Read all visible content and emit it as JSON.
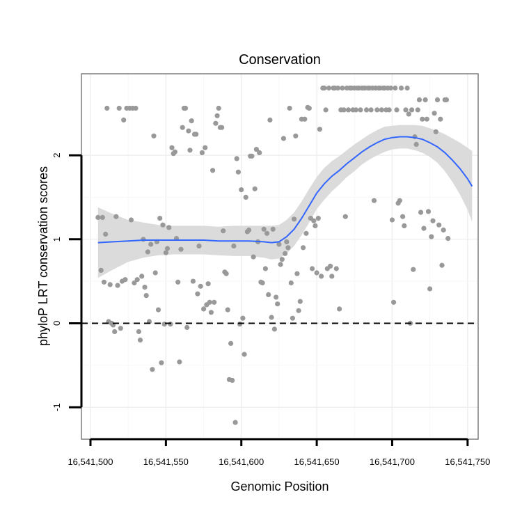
{
  "chart_data": {
    "type": "scatter",
    "title": "Conservation",
    "xlabel": "Genomic Position",
    "ylabel": "phyloP LRT conservation scores",
    "xlim": [
      16541494,
      16541757
    ],
    "ylim": [
      -1.38,
      2.97
    ],
    "x_ticks": [
      16541500,
      16541550,
      16541600,
      16541650,
      16541700,
      16541750
    ],
    "x_tick_labels": [
      "16,541,500",
      "16,541,550",
      "16,541,600",
      "16,541,650",
      "16,541,700",
      "16,541,750"
    ],
    "y_ticks": [
      -1,
      0,
      1,
      2
    ],
    "y_tick_labels": [
      "-1",
      "0",
      "1",
      "2"
    ],
    "grid": true,
    "reference_line": {
      "y": 0,
      "style": "dashed"
    },
    "point_color": "#999999",
    "smooth_color": "#3366ff",
    "ribbon_color": "#d9d9d9",
    "points": [
      [
        16541505,
        1.26
      ],
      [
        16541507,
        0.63
      ],
      [
        16541508,
        1.26
      ],
      [
        16541509,
        0.49
      ],
      [
        16541510,
        1.06
      ],
      [
        16541511,
        2.56
      ],
      [
        16541512,
        0.02
      ],
      [
        16541513,
        0.46
      ],
      [
        16541514,
        0.0
      ],
      [
        16541515,
        -0.02
      ],
      [
        16541516,
        -0.1
      ],
      [
        16541517,
        1.27
      ],
      [
        16541518,
        0.45
      ],
      [
        16541519,
        2.56
      ],
      [
        16541520,
        -0.06
      ],
      [
        16541521,
        0.5
      ],
      [
        16541522,
        2.42
      ],
      [
        16541523,
        0.52
      ],
      [
        16541524,
        2.56
      ],
      [
        16541526,
        2.56
      ],
      [
        16541527,
        1.23
      ],
      [
        16541528,
        2.56
      ],
      [
        16541529,
        0.48
      ],
      [
        16541530,
        2.56
      ],
      [
        16541531,
        0.52
      ],
      [
        16541532,
        -0.1
      ],
      [
        16541533,
        -0.2
      ],
      [
        16541534,
        0.56
      ],
      [
        16541535,
        1.0
      ],
      [
        16541536,
        0.43
      ],
      [
        16541537,
        0.33
      ],
      [
        16541538,
        0.85
      ],
      [
        16541539,
        0.02
      ],
      [
        16541540,
        0.94
      ],
      [
        16541541,
        -0.55
      ],
      [
        16541542,
        2.23
      ],
      [
        16541543,
        0.6
      ],
      [
        16541544,
        0.97
      ],
      [
        16541545,
        0.16
      ],
      [
        16541546,
        1.25
      ],
      [
        16541547,
        -0.47
      ],
      [
        16541548,
        1.17
      ],
      [
        16541549,
        -0.01
      ],
      [
        16541550,
        0.84
      ],
      [
        16541551,
        0.89
      ],
      [
        16541552,
        1.14
      ],
      [
        16541553,
        -0.01
      ],
      [
        16541554,
        2.09
      ],
      [
        16541555,
        2.02
      ],
      [
        16541556,
        2.04
      ],
      [
        16541557,
        1.01
      ],
      [
        16541558,
        0.49
      ],
      [
        16541559,
        -0.46
      ],
      [
        16541560,
        0.88
      ],
      [
        16541561,
        2.33
      ],
      [
        16541562,
        2.56
      ],
      [
        16541563,
        2.56
      ],
      [
        16541564,
        -0.05
      ],
      [
        16541565,
        2.29
      ],
      [
        16541566,
        2.06
      ],
      [
        16541567,
        2.41
      ],
      [
        16541568,
        0.5
      ],
      [
        16541569,
        2.25
      ],
      [
        16541570,
        2.25
      ],
      [
        16541571,
        0.35
      ],
      [
        16541572,
        0.92
      ],
      [
        16541573,
        0.44
      ],
      [
        16541574,
        2.03
      ],
      [
        16541575,
        0.17
      ],
      [
        16541576,
        2.09
      ],
      [
        16541577,
        0.22
      ],
      [
        16541578,
        0.47
      ],
      [
        16541579,
        0.25
      ],
      [
        16541580,
        0.13
      ],
      [
        16541581,
        1.82
      ],
      [
        16541582,
        0.25
      ],
      [
        16541583,
        2.38
      ],
      [
        16541584,
        2.47
      ],
      [
        16541585,
        2.56
      ],
      [
        16541586,
        2.33
      ],
      [
        16541587,
        2.33
      ],
      [
        16541588,
        1.1
      ],
      [
        16541589,
        0.61
      ],
      [
        16541590,
        0.59
      ],
      [
        16541591,
        0.16
      ],
      [
        16541592,
        -0.67
      ],
      [
        16541593,
        -0.24
      ],
      [
        16541594,
        -0.68
      ],
      [
        16541595,
        0.92
      ],
      [
        16541596,
        -1.18
      ],
      [
        16541597,
        1.96
      ],
      [
        16541598,
        1.8
      ],
      [
        16541599,
        -0.01
      ],
      [
        16541600,
        1.59
      ],
      [
        16541601,
        0.06
      ],
      [
        16541602,
        -0.37
      ],
      [
        16541603,
        1.5
      ],
      [
        16541604,
        1.09
      ],
      [
        16541605,
        1.11
      ],
      [
        16541606,
        1.99
      ],
      [
        16541607,
        1.99
      ],
      [
        16541608,
        0.79
      ],
      [
        16541609,
        1.6
      ],
      [
        16541610,
        2.07
      ],
      [
        16541611,
        0.97
      ],
      [
        16541612,
        2.03
      ],
      [
        16541613,
        0.49
      ],
      [
        16541614,
        0.48
      ],
      [
        16541615,
        1.12
      ],
      [
        16541616,
        0.65
      ],
      [
        16541617,
        1.07
      ],
      [
        16541618,
        0.34
      ],
      [
        16541619,
        2.42
      ],
      [
        16541620,
        0.07
      ],
      [
        16541621,
        1.12
      ],
      [
        16541622,
        -0.07
      ],
      [
        16541623,
        0.31
      ],
      [
        16541624,
        0.23
      ],
      [
        16541625,
        0.94
      ],
      [
        16541626,
        0.7
      ],
      [
        16541627,
        0.76
      ],
      [
        16541628,
        2.2
      ],
      [
        16541629,
        0.83
      ],
      [
        16541630,
        0.97
      ],
      [
        16541631,
        0.9
      ],
      [
        16541632,
        2.56
      ],
      [
        16541633,
        0.48
      ],
      [
        16541634,
        0.06
      ],
      [
        16541635,
        1.24
      ],
      [
        16541636,
        2.23
      ],
      [
        16541637,
        0.59
      ],
      [
        16541638,
        0.15
      ],
      [
        16541639,
        0.26
      ],
      [
        16541640,
        2.43
      ],
      [
        16541641,
        0.9
      ],
      [
        16541642,
        2.43
      ],
      [
        16541643,
        1.07
      ],
      [
        16541644,
        2.57
      ],
      [
        16541645,
        2.56
      ],
      [
        16541646,
        1.25
      ],
      [
        16541647,
        0.65
      ],
      [
        16541648,
        1.22
      ],
      [
        16541649,
        1.16
      ],
      [
        16541650,
        0.6
      ],
      [
        16541651,
        1.25
      ],
      [
        16541652,
        2.31
      ],
      [
        16541653,
        0.56
      ],
      [
        16541654,
        2.8
      ],
      [
        16541655,
        2.8
      ],
      [
        16541656,
        2.54
      ],
      [
        16541657,
        0.65
      ],
      [
        16541658,
        2.8
      ],
      [
        16541659,
        0.68
      ],
      [
        16541660,
        0.56
      ],
      [
        16541661,
        2.8
      ],
      [
        16541662,
        2.8
      ],
      [
        16541663,
        0.65
      ],
      [
        16541664,
        2.8
      ],
      [
        16541665,
        0.17
      ],
      [
        16541666,
        2.54
      ],
      [
        16541667,
        2.8
      ],
      [
        16541668,
        2.54
      ],
      [
        16541669,
        1.27
      ],
      [
        16541670,
        2.8
      ],
      [
        16541671,
        2.54
      ],
      [
        16541672,
        2.8
      ],
      [
        16541673,
        2.8
      ],
      [
        16541674,
        2.54
      ],
      [
        16541675,
        2.8
      ],
      [
        16541676,
        2.54
      ],
      [
        16541677,
        2.8
      ],
      [
        16541678,
        2.8
      ],
      [
        16541679,
        2.54
      ],
      [
        16541680,
        2.8
      ],
      [
        16541681,
        2.8
      ],
      [
        16541682,
        2.8
      ],
      [
        16541683,
        2.54
      ],
      [
        16541684,
        2.8
      ],
      [
        16541685,
        2.8
      ],
      [
        16541686,
        2.54
      ],
      [
        16541687,
        2.8
      ],
      [
        16541688,
        1.46
      ],
      [
        16541689,
        2.8
      ],
      [
        16541690,
        2.54
      ],
      [
        16541691,
        2.8
      ],
      [
        16541692,
        2.8
      ],
      [
        16541693,
        2.54
      ],
      [
        16541694,
        2.8
      ],
      [
        16541695,
        2.8
      ],
      [
        16541696,
        2.54
      ],
      [
        16541697,
        2.8
      ],
      [
        16541698,
        2.54
      ],
      [
        16541699,
        2.8
      ],
      [
        16541700,
        1.23
      ],
      [
        16541701,
        0.25
      ],
      [
        16541702,
        2.8
      ],
      [
        16541703,
        2.54
      ],
      [
        16541704,
        1.43
      ],
      [
        16541705,
        1.46
      ],
      [
        16541706,
        2.8
      ],
      [
        16541707,
        1.27
      ],
      [
        16541708,
        1.16
      ],
      [
        16541709,
        2.54
      ],
      [
        16541710,
        2.8
      ],
      [
        16541711,
        2.49
      ],
      [
        16541712,
        0.0
      ],
      [
        16541713,
        2.54
      ],
      [
        16541714,
        0.64
      ],
      [
        16541715,
        2.22
      ],
      [
        16541716,
        2.13
      ],
      [
        16541717,
        2.54
      ],
      [
        16541718,
        2.66
      ],
      [
        16541719,
        1.32
      ],
      [
        16541720,
        2.43
      ],
      [
        16541721,
        1.13
      ],
      [
        16541722,
        2.66
      ],
      [
        16541723,
        2.43
      ],
      [
        16541724,
        1.33
      ],
      [
        16541725,
        0.41
      ],
      [
        16541726,
        1.03
      ],
      [
        16541727,
        1.22
      ],
      [
        16541728,
        2.5
      ],
      [
        16541729,
        2.28
      ],
      [
        16541730,
        2.66
      ],
      [
        16541731,
        1.17
      ],
      [
        16541732,
        2.43
      ],
      [
        16541733,
        0.69
      ],
      [
        16541734,
        1.11
      ],
      [
        16541735,
        2.66
      ],
      [
        16541736,
        2.66
      ],
      [
        16541737,
        1.01
      ]
    ],
    "smooth_curve": {
      "x": [
        16541505,
        16541515,
        16541525,
        16541535,
        16541545,
        16541555,
        16541565,
        16541575,
        16541585,
        16541595,
        16541605,
        16541615,
        16541620,
        16541625,
        16541630,
        16541635,
        16541640,
        16541645,
        16541650,
        16541655,
        16541660,
        16541665,
        16541670,
        16541675,
        16541680,
        16541685,
        16541690,
        16541695,
        16541700,
        16541705,
        16541710,
        16541715,
        16541720,
        16541725,
        16541730,
        16541735,
        16541740,
        16541745,
        16541750,
        16541753
      ],
      "y": [
        0.96,
        0.97,
        0.98,
        0.99,
        0.99,
        0.99,
        0.99,
        0.99,
        0.98,
        0.98,
        0.98,
        0.97,
        0.96,
        0.97,
        1.03,
        1.12,
        1.25,
        1.4,
        1.55,
        1.66,
        1.75,
        1.82,
        1.9,
        1.97,
        2.04,
        2.1,
        2.15,
        2.19,
        2.21,
        2.22,
        2.22,
        2.21,
        2.19,
        2.15,
        2.1,
        2.03,
        1.94,
        1.84,
        1.72,
        1.63
      ],
      "se": [
        0.42,
        0.33,
        0.25,
        0.21,
        0.18,
        0.17,
        0.17,
        0.17,
        0.17,
        0.18,
        0.18,
        0.19,
        0.2,
        0.2,
        0.2,
        0.2,
        0.2,
        0.2,
        0.19,
        0.19,
        0.18,
        0.17,
        0.16,
        0.16,
        0.15,
        0.15,
        0.15,
        0.15,
        0.14,
        0.14,
        0.14,
        0.15,
        0.16,
        0.17,
        0.19,
        0.22,
        0.26,
        0.31,
        0.37,
        0.42
      ]
    }
  }
}
